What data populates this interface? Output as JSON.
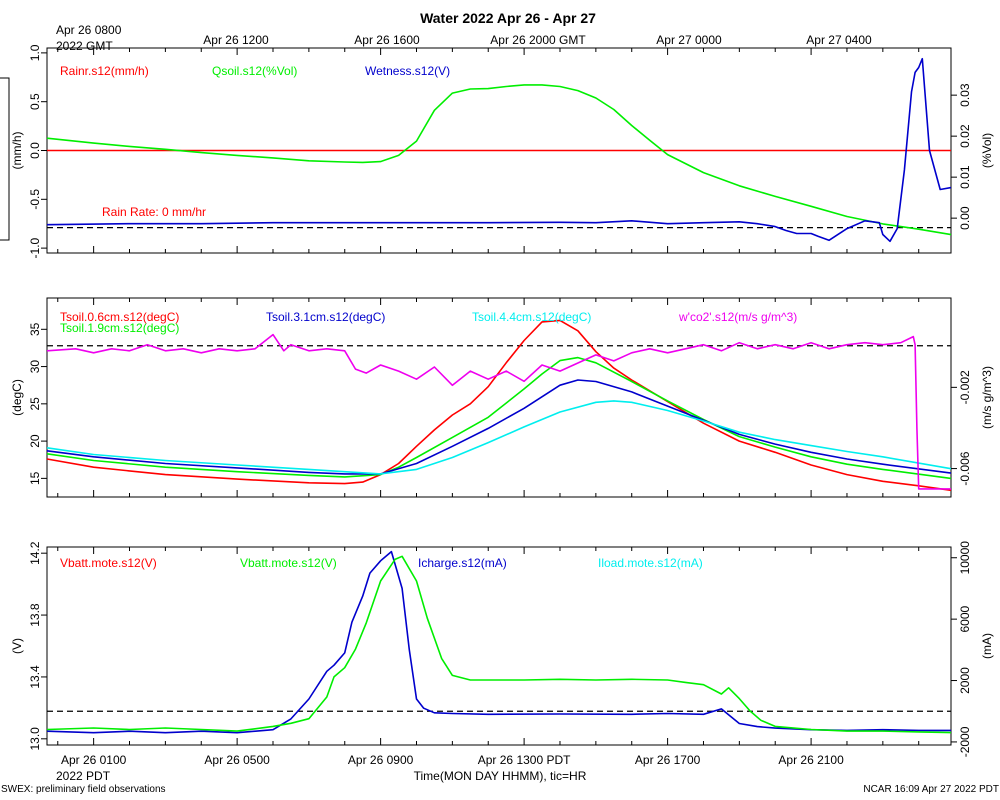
{
  "title": "Water 2022 Apr 26 - Apr 27",
  "top_axis": {
    "first_label": [
      "Apr 26 0800",
      "2022 GMT"
    ],
    "labels": [
      "Apr 26 1200",
      "Apr 26 1600",
      "Apr 26 2000 GMT",
      "Apr 27 0000",
      "Apr 27 0400"
    ]
  },
  "bottom_axis": {
    "labels": [
      "Apr 26 0100",
      "Apr 26 0500",
      "Apr 26 0900",
      "Apr 26 1300 PDT",
      "Apr 26 1700",
      "Apr 26 2100"
    ],
    "year_label": "2022 PDT",
    "xlabel": "Time(MON DAY HHMM), tic=HR",
    "label_hours": [
      1,
      5,
      9,
      13,
      17,
      21
    ]
  },
  "footer": {
    "left": "SWEX: preliminary field observations",
    "right": "NCAR 16:09 Apr 27 2022 PDT"
  },
  "colors": {
    "red": "#ff0000",
    "green": "#00ee00",
    "blue": "#0000cc",
    "cyan": "#00eeee",
    "magenta": "#ee00ee",
    "black": "#000000"
  },
  "chart_data": [
    {
      "type": "line",
      "name": "water",
      "x_unit": "hours since Apr 26 0000 PDT",
      "xlim": [
        -0.3,
        24.9
      ],
      "left_axis": {
        "label": "(mm/h)",
        "ylim": [
          -1.05,
          1.05
        ],
        "ticks": [
          "-1.0",
          "-0.5",
          "0.0",
          "0.5",
          "1.0"
        ],
        "tick_values": [
          -1.0,
          -0.5,
          0.0,
          0.5,
          1.0
        ]
      },
      "right_axis": {
        "label": "(%Vol)",
        "ylim": [
          -0.0085,
          0.0415
        ],
        "ticks": [
          "0.00",
          "0.01",
          "0.02",
          "0.03"
        ],
        "tick_values": [
          0.0,
          0.01,
          0.02,
          0.03
        ]
      },
      "legend": [
        {
          "text": "Rainr.s12(mm/h)",
          "color": "#ff0000"
        },
        {
          "text": "Qsoil.s12(%Vol)",
          "color": "#00ee00"
        },
        {
          "text": "Wetness.s12(V)",
          "color": "#0000cc"
        }
      ],
      "annotation": "Rain Rate: 0 mm/hr",
      "series": [
        {
          "name": "Rainr.s12",
          "axis": "left",
          "color": "#ff0000",
          "x": [
            -0.3,
            24.9
          ],
          "y": [
            0.0,
            0.0
          ]
        },
        {
          "name": "Qsoil.s12",
          "axis": "right",
          "color": "#00ee00",
          "x": [
            -0.3,
            1,
            2,
            3,
            4,
            5,
            6,
            7,
            8,
            8.5,
            9,
            9.5,
            10,
            10.5,
            11,
            11.5,
            12,
            12.5,
            13,
            13.5,
            14,
            14.5,
            15,
            15.5,
            16,
            16.5,
            17,
            18,
            19,
            20,
            21,
            22,
            23,
            24,
            24.9
          ],
          "y": [
            0.0195,
            0.0183,
            0.0175,
            0.0168,
            0.016,
            0.0153,
            0.0147,
            0.014,
            0.0137,
            0.0136,
            0.0138,
            0.0153,
            0.0188,
            0.0263,
            0.0305,
            0.0315,
            0.0316,
            0.0321,
            0.0325,
            0.0325,
            0.0321,
            0.0311,
            0.0293,
            0.0265,
            0.0226,
            0.019,
            0.0155,
            0.0111,
            0.0079,
            0.0053,
            0.0029,
            0.0004,
            -0.0014,
            -0.0027,
            -0.004
          ]
        },
        {
          "name": "Wetness.s12",
          "axis": "left",
          "color": "#0000cc",
          "x": [
            -0.3,
            2,
            4,
            6,
            8,
            10,
            12,
            14,
            15,
            16,
            17,
            18,
            19,
            19.5,
            20,
            20.3,
            20.6,
            21,
            21.2,
            21.5,
            22,
            22.5,
            22.9,
            23,
            23.2,
            23.4,
            23.6,
            23.8,
            23.9,
            24.0,
            24.1,
            24.3,
            24.6,
            24.9
          ],
          "y": [
            -0.76,
            -0.75,
            -0.75,
            -0.74,
            -0.74,
            -0.74,
            -0.74,
            -0.735,
            -0.74,
            -0.72,
            -0.75,
            -0.74,
            -0.73,
            -0.75,
            -0.78,
            -0.82,
            -0.85,
            -0.85,
            -0.88,
            -0.92,
            -0.8,
            -0.72,
            -0.74,
            -0.86,
            -0.93,
            -0.8,
            -0.2,
            0.6,
            0.8,
            0.85,
            0.94,
            0.0,
            -0.4,
            -0.38
          ]
        }
      ]
    },
    {
      "type": "line",
      "name": "soil temperature",
      "x_unit": "hours since Apr 26 0000 PDT",
      "xlim": [
        -0.3,
        24.9
      ],
      "left_axis": {
        "label": "(degC)",
        "ylim": [
          12.5,
          39.2
        ],
        "ticks": [
          "15",
          "20",
          "25",
          "30",
          "35"
        ],
        "tick_values": [
          15,
          20,
          25,
          30,
          35
        ]
      },
      "right_axis": {
        "label": "(m/s g/m^3)",
        "ylim": [
          -0.0074,
          0.0024
        ],
        "ticks": [
          "-0.006",
          "-0.002"
        ],
        "tick_values": [
          -0.006,
          -0.002
        ]
      },
      "legend": [
        {
          "text": "Tsoil.0.6cm.s12(degC)",
          "color": "#ff0000"
        },
        {
          "text": "Tsoil.1.9cm.s12(degC)",
          "color": "#00ee00"
        },
        {
          "text": "Tsoil.3.1cm.s12(degC)",
          "color": "#0000cc"
        },
        {
          "text": "Tsoil.4.4cm.s12(degC)",
          "color": "#00eeee"
        },
        {
          "text": "w'co2'.s12(m/s g/m^3)",
          "color": "#ee00ee"
        }
      ],
      "series": [
        {
          "name": "Tsoil.0.6cm.s12",
          "axis": "left",
          "color": "#ff0000",
          "x": [
            -0.3,
            1,
            3,
            5,
            7,
            8,
            8.5,
            9,
            9.5,
            10,
            10.5,
            11,
            11.5,
            12,
            12.5,
            13,
            13.5,
            14,
            14.5,
            15,
            15.5,
            16,
            17,
            18,
            19,
            20,
            21,
            22,
            23,
            24,
            24.9
          ],
          "y": [
            17.6,
            16.5,
            15.5,
            14.9,
            14.4,
            14.3,
            14.5,
            15.5,
            17.0,
            19.3,
            21.5,
            23.5,
            25.0,
            27.3,
            30.5,
            33.5,
            36.0,
            36.2,
            34.8,
            32.0,
            29.8,
            28.2,
            25.3,
            22.4,
            20.0,
            18.5,
            16.8,
            15.5,
            14.6,
            14.0,
            13.4
          ]
        },
        {
          "name": "Tsoil.1.9cm.s12",
          "axis": "left",
          "color": "#00ee00",
          "x": [
            -0.3,
            1,
            3,
            5,
            7,
            8,
            9,
            9.5,
            10,
            11,
            12,
            13,
            13.5,
            14,
            14.5,
            15,
            16,
            17,
            18,
            19,
            20,
            21,
            22,
            23,
            24.9
          ],
          "y": [
            18.3,
            17.4,
            16.5,
            15.9,
            15.4,
            15.2,
            15.5,
            16.5,
            17.8,
            20.5,
            23.2,
            27.0,
            29.0,
            30.8,
            31.2,
            30.5,
            28.0,
            25.4,
            22.9,
            20.6,
            19.2,
            17.9,
            16.9,
            16.2,
            15.0
          ]
        },
        {
          "name": "Tsoil.3.1cm.s12",
          "axis": "left",
          "color": "#0000cc",
          "x": [
            -0.3,
            1,
            3,
            5,
            7,
            8,
            9,
            10,
            11,
            12,
            13,
            14,
            14.5,
            15,
            16,
            17,
            18,
            19,
            20,
            21,
            22,
            23,
            24.9
          ],
          "y": [
            18.7,
            17.9,
            17.0,
            16.4,
            15.8,
            15.6,
            15.6,
            17.0,
            19.3,
            21.7,
            24.4,
            27.5,
            28.2,
            28.0,
            26.6,
            24.7,
            22.8,
            20.9,
            19.6,
            18.5,
            17.6,
            16.9,
            15.7
          ]
        },
        {
          "name": "Tsoil.4.4cm.s12",
          "axis": "left",
          "color": "#00eeee",
          "x": [
            -0.3,
            1,
            3,
            5,
            7,
            8,
            9,
            10,
            11,
            12,
            13,
            14,
            15,
            15.5,
            16,
            17,
            18,
            19,
            20,
            21,
            22,
            23,
            24.9
          ],
          "y": [
            19.1,
            18.2,
            17.4,
            16.8,
            16.2,
            15.9,
            15.6,
            16.2,
            17.8,
            19.8,
            21.9,
            23.9,
            25.2,
            25.4,
            25.2,
            24.1,
            22.7,
            21.2,
            20.2,
            19.4,
            18.6,
            17.9,
            16.3
          ]
        },
        {
          "name": "w'co2'.s12",
          "axis": "right",
          "color": "#ee00ee",
          "x": [
            -0.3,
            0.5,
            1,
            1.5,
            2,
            2.5,
            3,
            3.5,
            4,
            4.5,
            5,
            5.5,
            6,
            6.3,
            6.5,
            7,
            7.5,
            8,
            8.3,
            8.6,
            9,
            9.5,
            10,
            10.5,
            11,
            11.5,
            12,
            12.5,
            13,
            13.5,
            14,
            14.5,
            15,
            15.5,
            16,
            16.5,
            17,
            17.5,
            18,
            18.5,
            19,
            19.5,
            20,
            20.5,
            21,
            21.5,
            22,
            22.5,
            23,
            23.5,
            23.85,
            23.9,
            23.95,
            24.0,
            24.9
          ],
          "y": [
            -0.0002,
            -0.0001,
            -0.0003,
            -0.0001,
            -0.0002,
            0.0001,
            -0.0002,
            -0.0001,
            -0.0003,
            -0.0001,
            -0.0002,
            -0.0001,
            0.0006,
            -0.0002,
            0.0001,
            -0.0002,
            -0.0001,
            -0.0002,
            -0.0011,
            -0.0013,
            -0.0009,
            -0.0012,
            -0.0016,
            -0.001,
            -0.0019,
            -0.0012,
            -0.0016,
            -0.0012,
            -0.0017,
            -0.0009,
            -0.0012,
            -0.0008,
            -0.0004,
            -0.0007,
            -0.0003,
            -0.0001,
            -0.0003,
            -0.0001,
            0.0001,
            -0.0002,
            0.0002,
            -0.0001,
            0.0001,
            -0.0001,
            0.0002,
            -0.0001,
            0.0001,
            0.0002,
            0.0001,
            0.0002,
            0.0005,
            0.0001,
            -0.004,
            -0.007,
            -0.007
          ]
        }
      ]
    },
    {
      "type": "line",
      "name": "power",
      "x_unit": "hours since Apr 26 0000 PDT",
      "xlim": [
        -0.3,
        24.9
      ],
      "left_axis": {
        "label": "(V)",
        "ylim": [
          12.96,
          14.24
        ],
        "ticks": [
          "13.0",
          "13.4",
          "13.8",
          "14.2"
        ],
        "tick_values": [
          13.0,
          13.4,
          13.8,
          14.2
        ]
      },
      "right_axis": {
        "label": "(mA)",
        "ylim": [
          -2200,
          10700
        ],
        "ticks": [
          "-2000",
          "2000",
          "6000",
          "10000"
        ],
        "tick_values": [
          -2000,
          2000,
          6000,
          10000
        ]
      },
      "legend": [
        {
          "text": "Vbatt.mote.s12(V)",
          "color": "#ff0000"
        },
        {
          "text": "Vbatt.mote.s12(V)",
          "color": "#00ee00"
        },
        {
          "text": "Icharge.s12(mA)",
          "color": "#0000cc"
        },
        {
          "text": "Iload.mote.s12(mA)",
          "color": "#00eeee"
        }
      ],
      "series": [
        {
          "name": "Icharge.s12",
          "axis": "right",
          "color": "#0000cc",
          "x": [
            -0.3,
            1,
            2,
            3,
            4,
            5,
            6,
            6.5,
            7,
            7.5,
            7.7,
            8.0,
            8.2,
            8.5,
            8.7,
            9.0,
            9.3,
            9.6,
            9.8,
            10.0,
            10.2,
            10.5,
            11,
            12,
            14,
            16,
            17,
            18,
            18.5,
            19,
            19.5,
            20,
            21,
            22,
            23,
            24,
            24.9
          ],
          "y": [
            -1300,
            -1400,
            -1300,
            -1400,
            -1300,
            -1400,
            -1200,
            -500,
            800,
            2600,
            3000,
            3800,
            5800,
            7500,
            9000,
            9800,
            10400,
            8000,
            4000,
            800,
            200,
            -100,
            -150,
            -200,
            -180,
            -200,
            -150,
            -200,
            150,
            -800,
            -1000,
            -1100,
            -1200,
            -1250,
            -1200,
            -1250,
            -1250
          ]
        },
        {
          "name": "Vbatt.mote.s12",
          "axis": "left",
          "color": "#00ee00",
          "x": [
            -0.3,
            1,
            2,
            3,
            4,
            5,
            6,
            6.5,
            7,
            7.5,
            7.7,
            8.0,
            8.3,
            8.6,
            9.0,
            9.4,
            9.6,
            10.0,
            10.3,
            10.7,
            11.0,
            11.5,
            12,
            13,
            14,
            15,
            16,
            17,
            17.5,
            18,
            18.5,
            18.7,
            19.0,
            19.3,
            19.6,
            20,
            21,
            22,
            23,
            24,
            24.9
          ],
          "y": [
            13.06,
            13.07,
            13.06,
            13.07,
            13.06,
            13.05,
            13.08,
            13.1,
            13.13,
            13.27,
            13.4,
            13.46,
            13.58,
            13.75,
            14.02,
            14.16,
            14.18,
            14.02,
            13.78,
            13.52,
            13.41,
            13.38,
            13.38,
            13.38,
            13.385,
            13.38,
            13.385,
            13.38,
            13.365,
            13.35,
            13.29,
            13.33,
            13.26,
            13.18,
            13.12,
            13.08,
            13.06,
            13.05,
            13.05,
            13.045,
            13.04
          ]
        }
      ]
    }
  ]
}
